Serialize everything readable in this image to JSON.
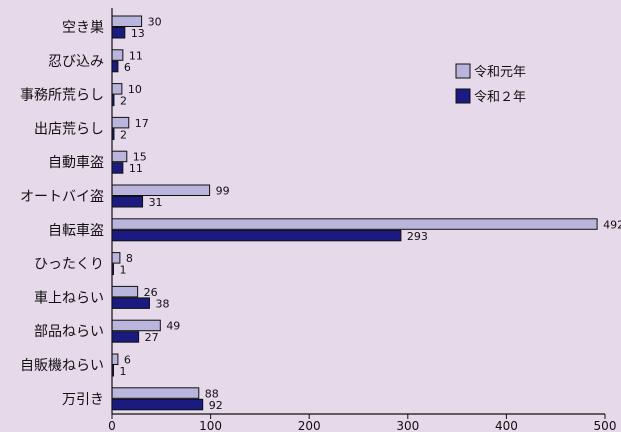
{
  "chart_data": {
    "type": "bar",
    "orientation": "horizontal",
    "categories": [
      "空き巣",
      "忍び込み",
      "事務所荒らし",
      "出店荒らし",
      "自動車盗",
      "オートバイ盗",
      "自転車盗",
      "ひったくり",
      "車上ねらい",
      "部品ねらい",
      "自販機ねらい",
      "万引き"
    ],
    "series": [
      {
        "name": "令和元年",
        "values": [
          30,
          11,
          10,
          17,
          15,
          99,
          492,
          8,
          26,
          49,
          6,
          88
        ],
        "color": "#b9b5dc"
      },
      {
        "name": "令和２年",
        "values": [
          13,
          6,
          2,
          2,
          11,
          31,
          293,
          1,
          38,
          27,
          1,
          92
        ],
        "color": "#1a1a80"
      }
    ],
    "xlim": [
      0,
      500
    ],
    "xticks": [
      "0",
      "100",
      "200",
      "300",
      "400",
      "500"
    ],
    "grid": false,
    "legend_position": "right"
  }
}
